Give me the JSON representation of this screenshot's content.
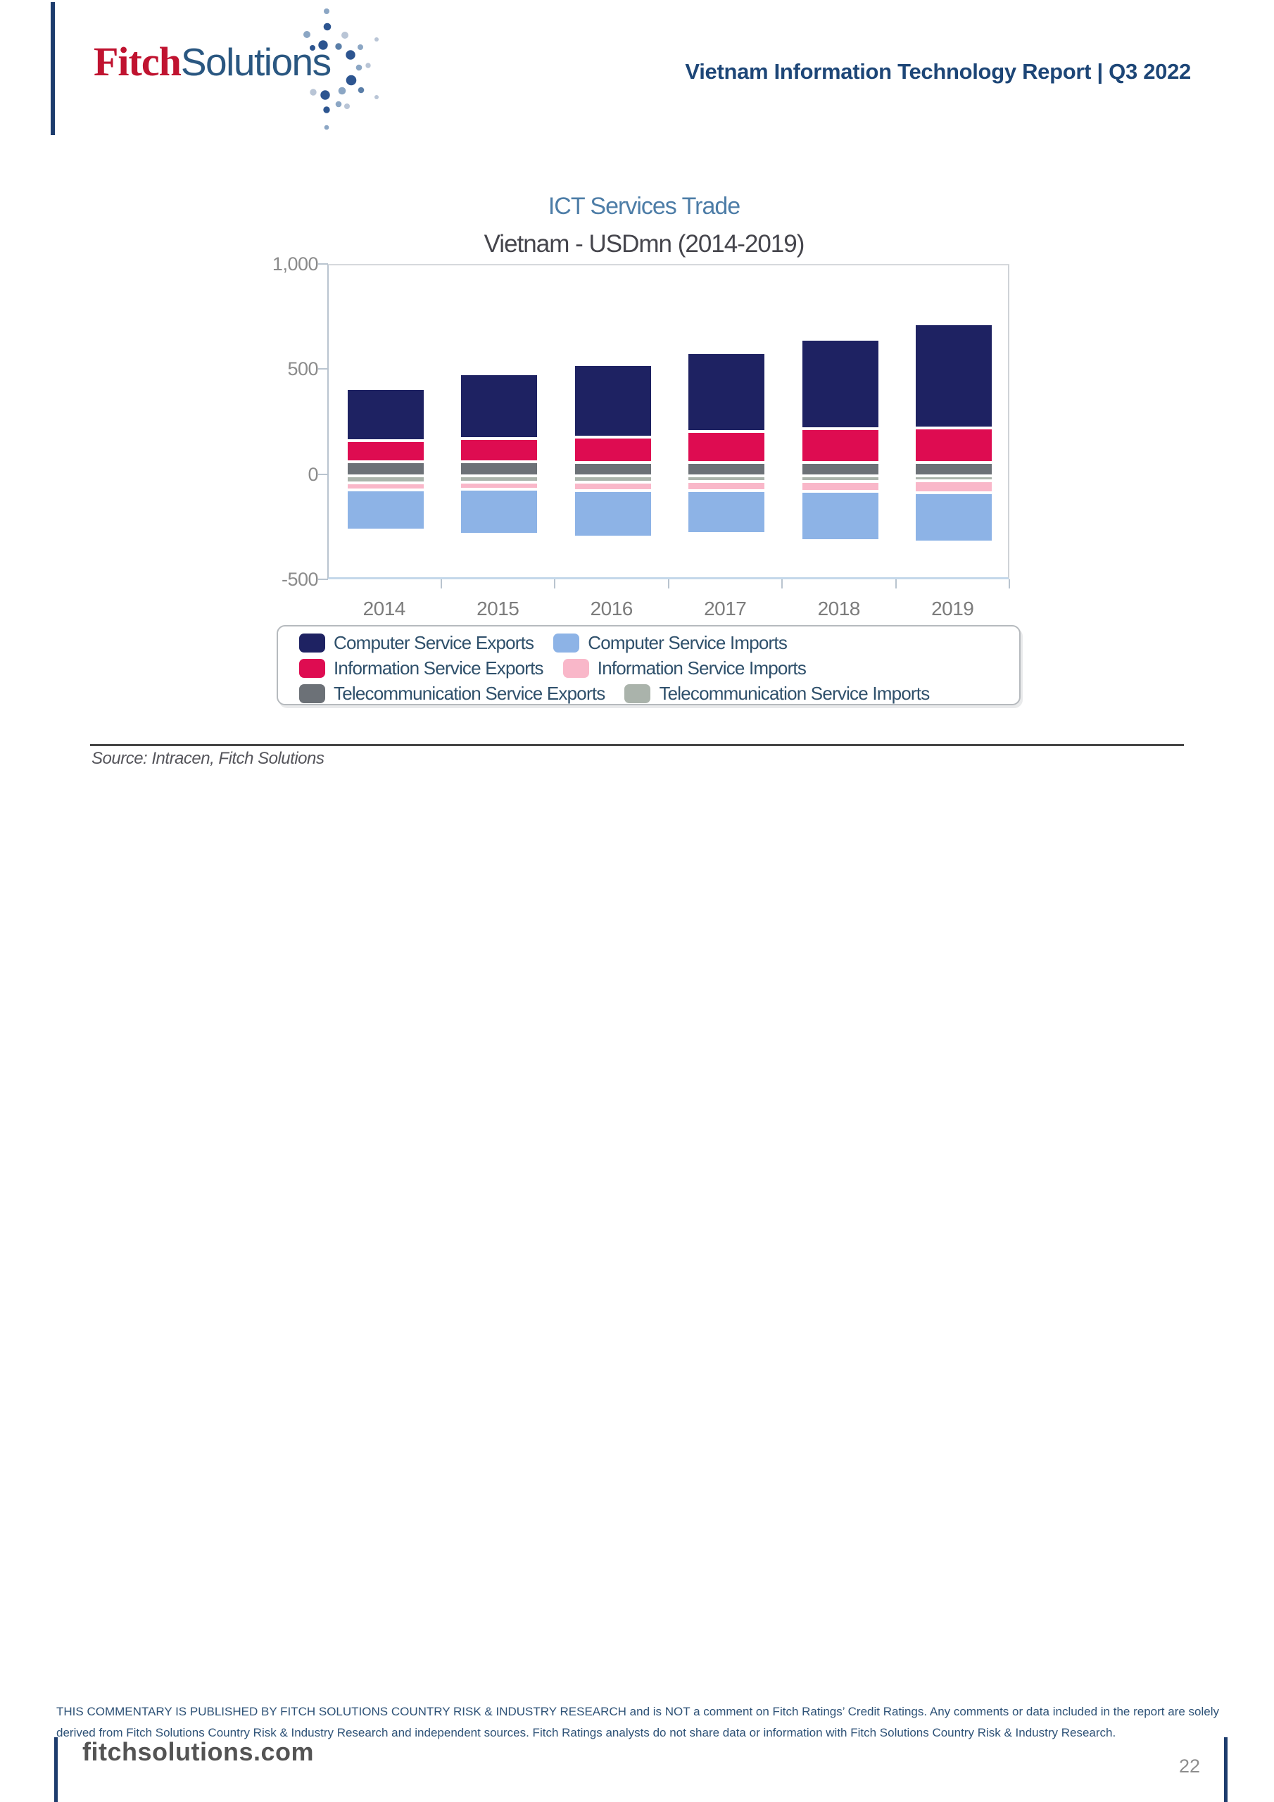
{
  "header": {
    "logo": {
      "fitch": "Fitch",
      "solutions": "Solutions"
    },
    "report_title": "Vietnam Information Technology Report | Q3 2022"
  },
  "chart_data": {
    "type": "bar",
    "stacked": true,
    "title": "ICT Services Trade",
    "subtitle": "Vietnam - USDmn (2014-2019)",
    "unit": "USDmn",
    "categories": [
      "2014",
      "2015",
      "2016",
      "2017",
      "2018",
      "2019"
    ],
    "series": [
      {
        "name": "Computer Service Exports",
        "color": "#1e2262",
        "values": [
          250,
          307,
          345,
          375,
          428,
          497
        ]
      },
      {
        "name": "Information Service Exports",
        "color": "#de0c51",
        "values": [
          100,
          113,
          120,
          146,
          158,
          161
        ]
      },
      {
        "name": "Telecommunication Service Exports",
        "color": "#6c7177",
        "values": [
          65,
          65,
          64,
          64,
          64,
          64
        ]
      },
      {
        "name": "Telecommunication Service Imports",
        "color": "#aab3ab",
        "values": [
          -33,
          -31,
          -30,
          -27,
          -27,
          -25
        ]
      },
      {
        "name": "Information Service Imports",
        "color": "#f9b7c9",
        "values": [
          -35,
          -34,
          -42,
          -45,
          -49,
          -56
        ]
      },
      {
        "name": "Computer Service Imports",
        "color": "#8db3e6",
        "values": [
          -190,
          -215,
          -220,
          -203,
          -233,
          -234
        ]
      }
    ],
    "y_axis": {
      "min": -500,
      "max": 1000,
      "ticks": [
        {
          "label": "1,000",
          "value": 1000
        },
        {
          "label": "500",
          "value": 500
        },
        {
          "label": "0",
          "value": 0
        },
        {
          "label": "-500",
          "value": -500
        }
      ]
    },
    "legend_position": "bottom",
    "legend_rows": [
      [
        0,
        5
      ],
      [
        1,
        4
      ],
      [
        2,
        3
      ]
    ],
    "grid": false
  },
  "source": {
    "text": "Source: Intracen, Fitch Solutions"
  },
  "footer": {
    "disclaimer_line1": "THIS COMMENTARY IS PUBLISHED BY FITCH SOLUTIONS COUNTRY RISK & INDUSTRY RESEARCH and is NOT a comment on Fitch Ratings’ Credit Ratings. Any comments or data included in the report are solely",
    "disclaimer_line2": "derived from Fitch Solutions Country Risk & Industry Research and independent sources. Fitch Ratings analysts do not share data or information with Fitch Solutions Country Risk & Industry Research.",
    "website": "fitchsolutions.com",
    "page_number": "22"
  }
}
